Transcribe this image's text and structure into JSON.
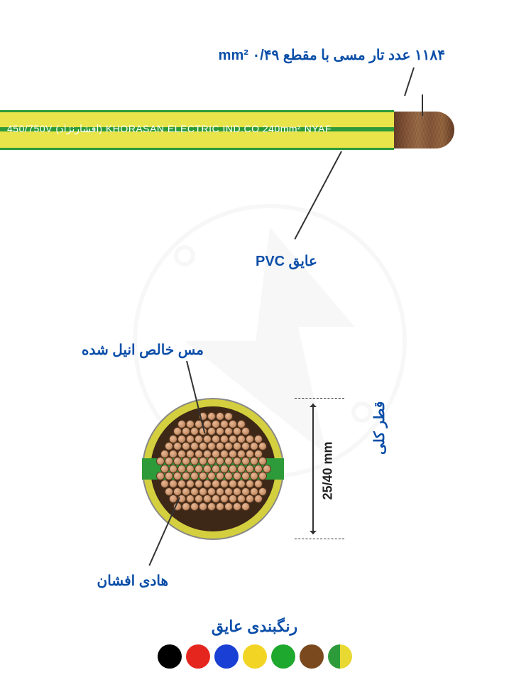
{
  "labels": {
    "strands": "۱۱۸۴ عدد تار مسی با مقطع ۰/۴۹ mm²",
    "pvc": "عایق PVC",
    "annealed": "مس خالص انیل شده",
    "conductor": "هادی افشان",
    "diameter_title": "قطر کلی",
    "diameter_value": "25/40 mm",
    "colors_title": "رنگبندی عایق"
  },
  "cable_text": "450/750V  (افشارنژاد)  KHORASAN ELECTRIC IND.CO   240mm²   NYAF",
  "colors": {
    "cable_yellow": "#e8e44a",
    "cable_green": "#2d9b3a",
    "copper_light": "#e8b896",
    "copper_mid": "#c8926a",
    "copper_dark": "#8b5a3c",
    "label_blue": "#0b4ea8",
    "dim_text": "#222222"
  },
  "swatches": [
    "#000000",
    "#e5261f",
    "#1a3fd4",
    "#f2d424",
    "#1fa82e",
    "#7a4a1e",
    "split"
  ],
  "strand_grid": {
    "rows": 13,
    "cols": 13,
    "size": 12,
    "area": 164
  }
}
